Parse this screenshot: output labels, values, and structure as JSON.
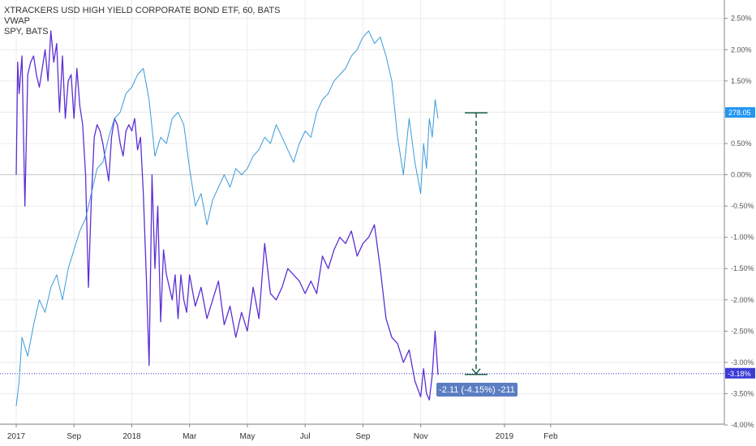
{
  "legend": {
    "main": "XTRACKERS USD HIGH YIELD CORPORATE BOND ETF, 60, BATS",
    "indicator": "VWAP",
    "compare": "SPY, BATS"
  },
  "badges": {
    "compare_last": "278.05",
    "main_last": "-3.18%"
  },
  "measure": {
    "label": "-2.11 (-4.15%) -211"
  },
  "colors": {
    "main_line": "#5b2fd4",
    "compare_line": "#3a9ad9",
    "baseline": "#c8c8c8",
    "grid": "#ececec",
    "last_line": "#3b3bd6",
    "measure": "#1b5e4a",
    "label_bg": "#5b7dc2",
    "badge_compare": "#2196f3",
    "badge_main": "#3b3bd6"
  },
  "chart_data": {
    "type": "line",
    "title": "XTRACKERS USD HIGH YIELD CORPORATE BOND ETF, 60, BATS",
    "ylabel": "",
    "xlabel": "",
    "y_axis_side": "right",
    "y_unit": "% change",
    "ylim": [
      -4.0,
      2.6
    ],
    "y_ticks": [
      "2.50%",
      "2.00%",
      "1.50%",
      "1.00%",
      "0.50%",
      "0.00%",
      "-0.50%",
      "-1.00%",
      "-1.50%",
      "-2.00%",
      "-2.50%",
      "-3.00%",
      "-3.50%",
      "-4.00%"
    ],
    "y_tick_values": [
      2.5,
      2.0,
      1.5,
      1.0,
      0.5,
      0.0,
      -0.5,
      -1.0,
      -1.5,
      -2.0,
      -2.5,
      -3.0,
      -3.5,
      -4.0
    ],
    "x_ticks": [
      {
        "label": "2017",
        "t": 0.0
      },
      {
        "label": "Sep",
        "t": 2.0
      },
      {
        "label": "2018",
        "t": 4.0
      },
      {
        "label": "Mar",
        "t": 6.0
      },
      {
        "label": "May",
        "t": 8.0
      },
      {
        "label": "Jul",
        "t": 10.0
      },
      {
        "label": "Sep",
        "t": 12.0
      },
      {
        "label": "Nov",
        "t": 14.0
      },
      {
        "label": "2019",
        "t": 16.9
      },
      {
        "label": "Feb",
        "t": 18.5
      }
    ],
    "xlim": [
      -0.1,
      22.8
    ],
    "grid": true,
    "series": [
      {
        "name": "XTRACKERS USD HIGH YIELD CORPORATE BOND ETF",
        "x": [
          0.0,
          0.05,
          0.1,
          0.2,
          0.3,
          0.4,
          0.5,
          0.6,
          0.7,
          0.8,
          0.9,
          1.0,
          1.1,
          1.2,
          1.3,
          1.4,
          1.5,
          1.6,
          1.7,
          1.8,
          1.9,
          2.0,
          2.1,
          2.2,
          2.3,
          2.4,
          2.5,
          2.6,
          2.7,
          2.8,
          2.9,
          3.0,
          3.1,
          3.2,
          3.3,
          3.4,
          3.5,
          3.6,
          3.7,
          3.8,
          3.9,
          4.0,
          4.1,
          4.2,
          4.3,
          4.4,
          4.5,
          4.6,
          4.7,
          4.8,
          4.9,
          5.0,
          5.1,
          5.2,
          5.3,
          5.4,
          5.5,
          5.6,
          5.7,
          5.8,
          5.9,
          6.0,
          6.2,
          6.4,
          6.6,
          6.8,
          7.0,
          7.2,
          7.4,
          7.6,
          7.8,
          8.0,
          8.2,
          8.4,
          8.6,
          8.8,
          9.0,
          9.2,
          9.4,
          9.6,
          9.8,
          10.0,
          10.2,
          10.4,
          10.6,
          10.8,
          11.0,
          11.2,
          11.4,
          11.6,
          11.8,
          12.0,
          12.2,
          12.4,
          12.6,
          12.8,
          13.0,
          13.2,
          13.4,
          13.6,
          13.8,
          14.0,
          14.1,
          14.2,
          14.3,
          14.4,
          14.5,
          14.6
        ],
        "values": [
          0.0,
          1.8,
          1.3,
          1.9,
          -0.5,
          1.6,
          1.8,
          1.9,
          1.6,
          1.4,
          1.7,
          2.0,
          1.5,
          2.3,
          1.8,
          2.1,
          1.0,
          1.9,
          0.9,
          1.5,
          1.6,
          0.9,
          1.7,
          1.1,
          0.8,
          0.0,
          -1.8,
          -0.4,
          0.6,
          0.8,
          0.7,
          0.5,
          0.2,
          -0.1,
          0.6,
          0.9,
          0.8,
          0.5,
          0.3,
          0.7,
          0.8,
          0.7,
          0.9,
          0.4,
          0.6,
          -0.3,
          -1.6,
          -3.05,
          0.0,
          -1.5,
          -0.5,
          -2.35,
          -1.2,
          -1.6,
          -1.8,
          -2.0,
          -1.6,
          -2.3,
          -1.6,
          -2.0,
          -2.2,
          -1.6,
          -2.1,
          -1.8,
          -2.3,
          -2.0,
          -1.7,
          -2.4,
          -2.1,
          -2.6,
          -2.2,
          -2.5,
          -1.8,
          -2.3,
          -1.1,
          -1.9,
          -2.0,
          -1.8,
          -1.5,
          -1.6,
          -1.7,
          -1.9,
          -1.7,
          -1.9,
          -1.3,
          -1.5,
          -1.2,
          -1.0,
          -1.1,
          -0.9,
          -1.3,
          -1.1,
          -1.0,
          -0.8,
          -1.5,
          -2.3,
          -2.6,
          -2.7,
          -3.0,
          -2.8,
          -3.3,
          -3.55,
          -3.1,
          -3.5,
          -3.6,
          -3.2,
          -2.5,
          -3.2
        ]
      },
      {
        "name": "SPY, BATS",
        "x": [
          0.0,
          0.1,
          0.2,
          0.4,
          0.6,
          0.8,
          1.0,
          1.2,
          1.4,
          1.6,
          1.8,
          2.0,
          2.2,
          2.4,
          2.6,
          2.8,
          3.0,
          3.2,
          3.4,
          3.6,
          3.8,
          4.0,
          4.2,
          4.4,
          4.6,
          4.8,
          5.0,
          5.2,
          5.4,
          5.6,
          5.8,
          6.0,
          6.2,
          6.4,
          6.6,
          6.8,
          7.0,
          7.2,
          7.4,
          7.6,
          7.8,
          8.0,
          8.2,
          8.4,
          8.6,
          8.8,
          9.0,
          9.2,
          9.4,
          9.6,
          9.8,
          10.0,
          10.2,
          10.4,
          10.6,
          10.8,
          11.0,
          11.2,
          11.4,
          11.6,
          11.8,
          12.0,
          12.2,
          12.4,
          12.6,
          12.8,
          13.0,
          13.2,
          13.4,
          13.6,
          13.8,
          14.0,
          14.1,
          14.2,
          14.3,
          14.4,
          14.5,
          14.6
        ],
        "values": [
          -3.7,
          -3.3,
          -2.6,
          -2.9,
          -2.4,
          -2.0,
          -2.2,
          -1.8,
          -1.6,
          -2.0,
          -1.5,
          -1.2,
          -0.9,
          -0.7,
          -0.3,
          0.1,
          0.2,
          0.6,
          0.9,
          1.0,
          1.3,
          1.4,
          1.6,
          1.7,
          1.2,
          0.3,
          0.6,
          0.5,
          0.9,
          1.0,
          0.8,
          0.1,
          -0.5,
          -0.3,
          -0.8,
          -0.4,
          -0.2,
          0.0,
          -0.2,
          0.1,
          0.0,
          0.1,
          0.3,
          0.4,
          0.6,
          0.5,
          0.8,
          0.6,
          0.4,
          0.2,
          0.5,
          0.7,
          0.6,
          1.0,
          1.2,
          1.3,
          1.5,
          1.6,
          1.7,
          1.9,
          2.0,
          2.2,
          2.3,
          2.1,
          2.2,
          1.9,
          1.5,
          0.6,
          0.0,
          0.9,
          0.2,
          -0.3,
          0.5,
          0.1,
          0.9,
          0.6,
          1.2,
          0.9
        ]
      }
    ]
  }
}
